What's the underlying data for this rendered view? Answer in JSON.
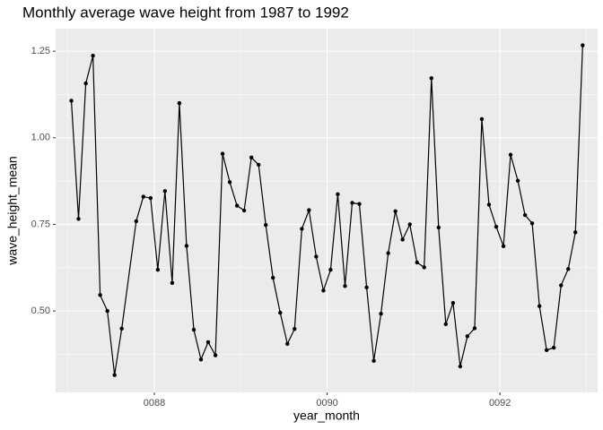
{
  "chart_data": {
    "type": "line",
    "title": "Monthly average wave height from 1987 to 1992",
    "x_label": "year_month",
    "y_label": "wave_height_mean",
    "x": [
      87.04,
      87.123,
      87.207,
      87.29,
      87.373,
      87.457,
      87.54,
      87.623,
      87.79,
      87.873,
      87.957,
      88.04,
      88.123,
      88.207,
      88.29,
      88.373,
      88.457,
      88.54,
      88.623,
      88.707,
      88.79,
      88.873,
      88.957,
      89.04,
      89.123,
      89.207,
      89.29,
      89.373,
      89.457,
      89.54,
      89.623,
      89.707,
      89.79,
      89.873,
      89.957,
      90.04,
      90.123,
      90.207,
      90.29,
      90.373,
      90.457,
      90.54,
      90.623,
      90.707,
      90.79,
      90.873,
      90.957,
      91.04,
      91.123,
      91.207,
      91.29,
      91.373,
      91.457,
      91.54,
      91.623,
      91.707,
      91.79,
      91.873,
      91.957,
      92.04,
      92.123,
      92.207,
      92.29,
      92.373,
      92.457,
      92.54,
      92.623,
      92.707,
      92.79,
      92.873,
      92.957
    ],
    "series": [
      {
        "name": "wave_height_mean",
        "color": "#000000",
        "values": [
          1.107,
          0.766,
          1.157,
          1.237,
          0.546,
          0.5,
          0.315,
          0.449,
          0.759,
          0.83,
          0.826,
          0.619,
          0.846,
          0.581,
          1.1,
          0.688,
          0.446,
          0.36,
          0.41,
          0.372,
          0.954,
          0.872,
          0.804,
          0.79,
          0.943,
          0.922,
          0.748,
          0.596,
          0.495,
          0.405,
          0.448,
          0.737,
          0.791,
          0.657,
          0.559,
          0.619,
          0.837,
          0.572,
          0.812,
          0.809,
          0.568,
          0.356,
          0.492,
          0.667,
          0.788,
          0.706,
          0.75,
          0.64,
          0.626,
          1.172,
          0.741,
          0.462,
          0.523,
          0.34,
          0.427,
          0.45,
          1.054,
          0.807,
          0.743,
          0.687,
          0.951,
          0.876,
          0.777,
          0.753,
          0.514,
          0.387,
          0.394,
          0.574,
          0.621,
          0.727,
          1.267
        ]
      }
    ],
    "xlim": [
      86.858,
      93.13
    ],
    "ylim": [
      0.265,
      1.315
    ],
    "xticks": [
      {
        "value": 88,
        "label": "0088"
      },
      {
        "value": 90,
        "label": "0090"
      },
      {
        "value": 92,
        "label": "0092"
      }
    ],
    "yticks": [
      {
        "value": 0.5,
        "label": "0.50"
      },
      0.75,
      {
        "value": 1,
        "label": "1.00"
      },
      1.25
    ],
    "grid": true
  }
}
